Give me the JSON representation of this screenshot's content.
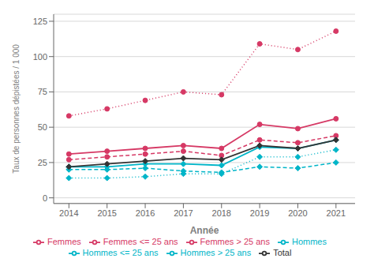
{
  "chart_data": {
    "type": "line",
    "x_label": "Année",
    "y_label": "Taux de personnes dépistées / 1 000",
    "x": [
      2014,
      2015,
      2016,
      2017,
      2018,
      2019,
      2020,
      2021
    ],
    "xlim": [
      2013.6,
      2021.5
    ],
    "xticks": [
      2014,
      2015,
      2016,
      2017,
      2018,
      2019,
      2020,
      2021
    ],
    "ylim": [
      -4,
      130
    ],
    "yticks": [
      0,
      25,
      50,
      75,
      100,
      125
    ],
    "grid": true,
    "legend": "bottom",
    "series": [
      {
        "name": "Femmes <= 25 ans",
        "color": "#d63965",
        "line_style": "dotted",
        "marker": "circle",
        "values": [
          58,
          63,
          69,
          75,
          73,
          109,
          105,
          118
        ]
      },
      {
        "name": "Femmes",
        "color": "#d63965",
        "line_style": "solid",
        "marker": "circle",
        "values": [
          31,
          33,
          35,
          37,
          35,
          52,
          49,
          56
        ]
      },
      {
        "name": "Femmes > 25 ans",
        "color": "#d63965",
        "line_style": "dashed",
        "marker": "circle",
        "values": [
          27,
          29,
          31,
          33,
          30,
          41,
          39,
          44
        ]
      },
      {
        "name": "Hommes <= 25 ans",
        "color": "#00b5c8",
        "line_style": "dotted",
        "marker": "diamond",
        "values": [
          14,
          14,
          15,
          17,
          17,
          29,
          29,
          34
        ]
      },
      {
        "name": "Hommes",
        "color": "#00b5c8",
        "line_style": "solid",
        "marker": "diamond",
        "values": [
          22,
          22,
          24,
          24,
          23,
          36,
          35,
          41
        ]
      },
      {
        "name": "Hommes > 25 ans",
        "color": "#00b5c8",
        "line_style": "dashed",
        "marker": "diamond",
        "values": [
          20,
          20,
          21,
          19,
          18,
          22,
          21,
          25
        ]
      },
      {
        "name": "Total",
        "color": "#333333",
        "line_style": "solid",
        "marker": "diamond",
        "values": [
          22,
          24,
          26,
          28,
          27,
          37,
          35,
          41
        ]
      }
    ]
  }
}
